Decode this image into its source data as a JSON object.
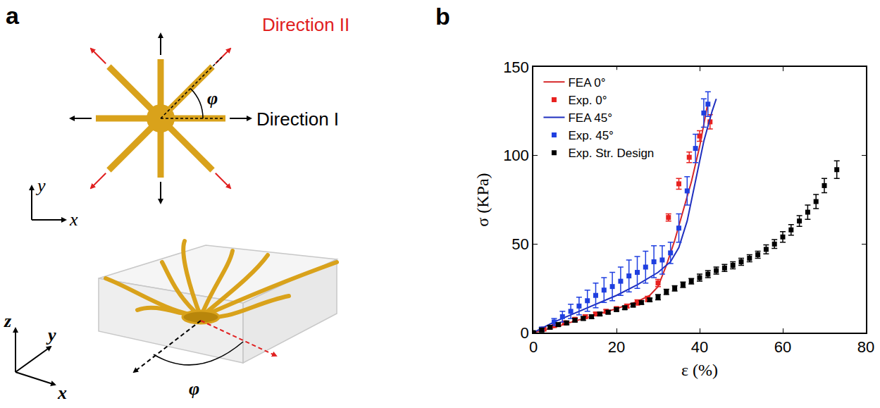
{
  "panel_a": {
    "label": "a",
    "direction_I": "Direction I",
    "direction_II": "Direction II",
    "angle": "φ",
    "plane_axes": [
      "x",
      "y"
    ],
    "space_axes": [
      "x",
      "y",
      "z"
    ]
  },
  "chart_data": {
    "label": "b",
    "type": "line",
    "x_label": "ε (%)",
    "y_label": "σ (KPa)",
    "xlim": [
      0,
      80
    ],
    "xticks": [
      0,
      20,
      40,
      60,
      80
    ],
    "ylim": [
      0,
      150
    ],
    "yticks": [
      0,
      50,
      100,
      150
    ],
    "grid": false,
    "legend": "upper left",
    "series": [
      {
        "name": "FEA 0°",
        "type": "line",
        "color": "#d62728",
        "line_style": "solid",
        "x": [
          0,
          5,
          10,
          15,
          20,
          25,
          28,
          30,
          32,
          34,
          36,
          38,
          40,
          42
        ],
        "values": [
          0,
          3,
          6.5,
          10,
          13.5,
          17.5,
          21,
          26,
          38,
          52,
          68,
          85,
          105,
          130
        ]
      },
      {
        "name": "Exp. 0°",
        "type": "scatter",
        "color": "#e8211f",
        "marker": "square",
        "x": [
          2.5,
          5,
          7.5,
          10,
          12.5,
          15,
          17.5,
          20,
          22.5,
          25,
          27.5,
          30,
          32.5,
          35,
          37.5,
          40,
          42.5
        ],
        "values": [
          2,
          4,
          5.5,
          7.5,
          9,
          10.5,
          12,
          13.5,
          15,
          17,
          19,
          28,
          65,
          84,
          99,
          111,
          119
        ],
        "errors": [
          1,
          1,
          1,
          1,
          1,
          1,
          1,
          1,
          1,
          1.5,
          1.5,
          2,
          2,
          3,
          3,
          3,
          4
        ]
      },
      {
        "name": "FEA 45°",
        "type": "line",
        "color": "#1f2fbf",
        "line_style": "solid",
        "x": [
          0,
          5,
          10,
          15,
          20,
          25,
          30,
          33,
          35,
          37,
          39,
          41,
          43,
          44
        ],
        "values": [
          0,
          6,
          11,
          16,
          21,
          27,
          34,
          40,
          48,
          63,
          85,
          108,
          125,
          132
        ]
      },
      {
        "name": "Exp. 45°",
        "type": "scatter",
        "color": "#1f3fe0",
        "marker": "square",
        "x": [
          2,
          5,
          7,
          9,
          11,
          13,
          15,
          17,
          19,
          21,
          23,
          25,
          27,
          29,
          31,
          33,
          35,
          37,
          39,
          41,
          42
        ],
        "values": [
          2,
          6,
          9,
          12,
          15,
          18,
          21,
          24,
          26,
          29,
          32,
          34,
          37,
          40,
          41,
          45,
          59,
          80,
          104,
          124,
          129
        ],
        "errors": [
          1,
          2,
          3,
          4,
          5,
          6,
          7,
          7,
          8,
          8,
          9,
          9,
          9,
          9,
          8,
          6,
          8,
          8,
          8,
          8,
          7
        ]
      },
      {
        "name": "Exp. Str. Design",
        "type": "scatter",
        "color": "#000000",
        "marker": "square",
        "x": [
          0,
          2,
          4,
          6,
          8,
          10,
          12,
          14,
          16,
          18,
          20,
          22,
          24,
          26,
          28,
          30,
          32,
          34,
          36,
          38,
          40,
          42,
          44,
          46,
          48,
          50,
          52,
          54,
          56,
          58,
          60,
          62,
          64,
          66,
          68,
          70,
          73
        ],
        "values": [
          0,
          1.5,
          3,
          4.5,
          5.5,
          7,
          8,
          9,
          10.5,
          11.5,
          13,
          14,
          15.5,
          17,
          18.5,
          20,
          23,
          25,
          27,
          29,
          31,
          33,
          35,
          36.5,
          38,
          40,
          42,
          44,
          47,
          50,
          54,
          58,
          63,
          68,
          74,
          83,
          92
        ],
        "errors": [
          0.5,
          1,
          1,
          1,
          1,
          1,
          1,
          1,
          1,
          1,
          1,
          1,
          1,
          1,
          1,
          1.5,
          1.5,
          1.5,
          1.5,
          1.5,
          2,
          2,
          2,
          2,
          2,
          2,
          2,
          2,
          2.5,
          2.5,
          3,
          3,
          3,
          4,
          4,
          4,
          5
        ]
      }
    ]
  }
}
